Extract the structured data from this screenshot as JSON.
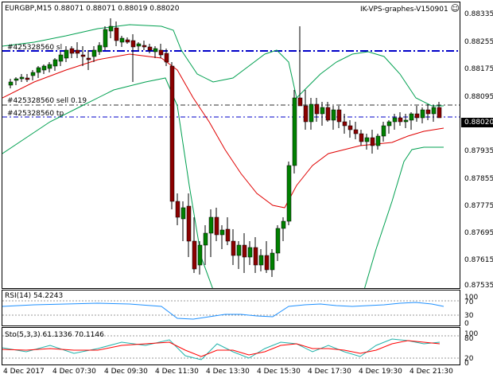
{
  "header": {
    "symbol_info": "EURGBP,M15  0.88071 0.88071 0.88019 0.88020",
    "indicator_name": "IK-VPS-graphes-V150901",
    "smiley": "☺"
  },
  "order_lines": {
    "sl_label": "#425328560 sl",
    "open_label": "#425328560 sell 0.19",
    "tp_label": "#425328560 tp",
    "colors": {
      "sl": "#0000c8",
      "open": "#303030",
      "tp": "#0000c8"
    }
  },
  "price_axis": {
    "labels": [
      "0.88335",
      "0.88255",
      "0.88175",
      "0.88095",
      "0.88015",
      "0.87935",
      "0.87855",
      "0.87775",
      "0.87695",
      "0.87615",
      "0.87535"
    ],
    "current_price": "0.88020"
  },
  "rsi": {
    "label": "RSI(14) 54.2243",
    "levels": [
      "100",
      "70",
      "30",
      "0"
    ],
    "color": "#1e90ff"
  },
  "stochastic": {
    "label": "Sto(5,3,3) 61.1336 70.1146",
    "levels": [
      "100",
      "80",
      "20",
      "0"
    ],
    "main_color": "#20b2aa",
    "signal_color": "#ff0000"
  },
  "time_axis": {
    "labels": [
      "4 Dec 2017",
      "4 Dec 07:30",
      "4 Dec 09:30",
      "4 Dec 11:30",
      "4 Dec 13:30",
      "4 Dec 15:30",
      "4 Dec 17:30",
      "4 Dec 19:30",
      "4 Dec 21:30"
    ]
  },
  "colors": {
    "bull": "#008000",
    "bear": "#8b0000",
    "bollinger": "#00a050",
    "ma": "#e00000"
  }
}
